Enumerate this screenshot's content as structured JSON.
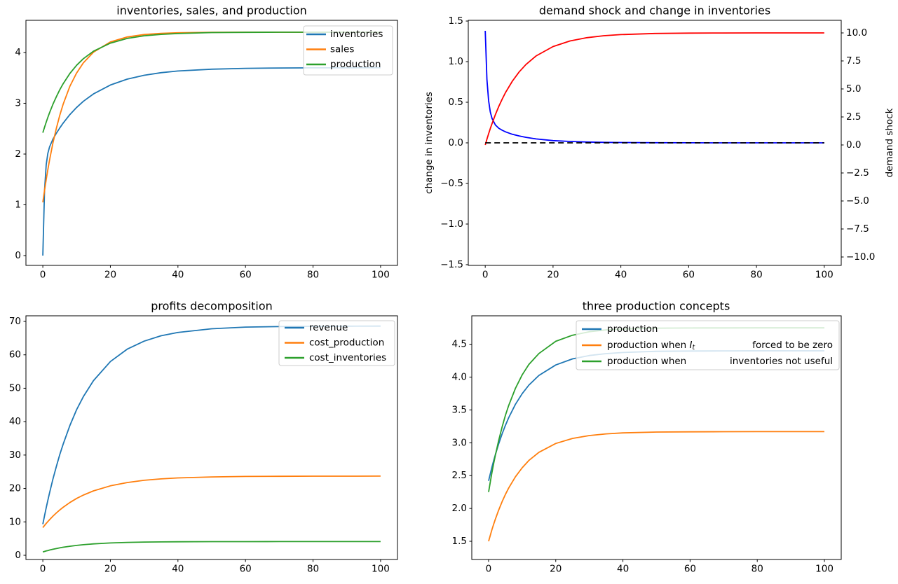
{
  "figure": {
    "background": "#ffffff",
    "colors": {
      "mpl_blue": "#1f77b4",
      "mpl_orange": "#ff7f0e",
      "mpl_green": "#2ca02c",
      "pure_blue": "#0000ff",
      "pure_red": "#ff0000",
      "black": "#000000"
    }
  },
  "chart_data": [
    {
      "id": "inventories-sales-production",
      "type": "line",
      "title": "inventories, sales, and production",
      "xlabel": "",
      "ylabel": "",
      "grid": false,
      "legend_position": "upper right",
      "xlim": [
        -5,
        105
      ],
      "ylim": [
        -0.193,
        4.634
      ],
      "xticks": [
        0,
        20,
        40,
        60,
        80,
        100
      ],
      "yticks": [
        0,
        1,
        2,
        3,
        4
      ],
      "xtick_decimals": 0,
      "ytick_decimals": 0,
      "x": [
        0,
        0.5,
        1,
        1.5,
        2,
        3,
        4,
        5,
        6,
        8,
        10,
        12,
        15,
        20,
        25,
        30,
        35,
        40,
        50,
        60,
        70,
        80,
        90,
        100
      ],
      "series": [
        {
          "name": "inventories",
          "color": "#1f77b4",
          "values": [
            0,
            1.274,
            1.787,
            2.017,
            2.141,
            2.293,
            2.41,
            2.513,
            2.608,
            2.776,
            2.918,
            3.038,
            3.184,
            3.36,
            3.476,
            3.552,
            3.603,
            3.636,
            3.672,
            3.688,
            3.695,
            3.698,
            3.699,
            3.7
          ]
        },
        {
          "name": "sales",
          "color": "#ff7f0e",
          "values": [
            1.05,
            1.281,
            1.496,
            1.696,
            1.883,
            2.218,
            2.508,
            2.76,
            2.978,
            3.332,
            3.597,
            3.797,
            4.007,
            4.208,
            4.306,
            4.354,
            4.377,
            4.389,
            4.397,
            4.399,
            4.4,
            4.4,
            4.4,
            4.4
          ]
        },
        {
          "name": "production",
          "color": "#2ca02c",
          "values": [
            2.42,
            2.527,
            2.628,
            2.724,
            2.815,
            2.981,
            3.13,
            3.264,
            3.383,
            3.586,
            3.748,
            3.878,
            4.026,
            4.185,
            4.277,
            4.329,
            4.357,
            4.374,
            4.392,
            4.397,
            4.399,
            4.4,
            4.4,
            4.4
          ]
        }
      ],
      "legend": {
        "items": [
          {
            "label": "inventories"
          },
          {
            "label": "sales"
          },
          {
            "label": "production"
          }
        ]
      }
    },
    {
      "id": "demand-shock-and-change-in-inventories",
      "type": "line",
      "title": "demand shock and change in inventories",
      "grid": false,
      "xlim": [
        -5,
        105
      ],
      "ylim": [
        -1.509,
        1.509
      ],
      "xticks": [
        0,
        20,
        40,
        60,
        80,
        100
      ],
      "yticks": [
        -1.5,
        -1.0,
        -0.5,
        0.0,
        0.5,
        1.0,
        1.5
      ],
      "xtick_decimals": 0,
      "ytick_decimals": 1,
      "ylabel_left": {
        "text": "change in inventories",
        "color": "#0000ff"
      },
      "right_axis": {
        "ylim": [
          -10.75,
          11.125
        ],
        "yticks": [
          -10.0,
          -7.5,
          -5.0,
          -2.5,
          0.0,
          2.5,
          5.0,
          7.5,
          10.0
        ],
        "decimals": 1,
        "label": {
          "text": "demand shock",
          "color": "#ff0000"
        }
      },
      "x": [
        0,
        0.5,
        1,
        1.5,
        2,
        3,
        4,
        5,
        6,
        8,
        10,
        12,
        15,
        20,
        25,
        30,
        35,
        40,
        50,
        60,
        70,
        80,
        90,
        100
      ],
      "series": [
        {
          "name": "change in inventories",
          "color": "#0000ff",
          "axis": "left",
          "values": [
            1.38,
            0.78,
            0.52,
            0.38,
            0.3,
            0.22,
            0.18,
            0.155,
            0.135,
            0.105,
            0.085,
            0.068,
            0.048,
            0.028,
            0.017,
            0.01,
            0.006,
            0.004,
            0.002,
            0.001,
            0,
            0,
            0,
            0
          ]
        },
        {
          "name": "demand shock",
          "color": "#ff0000",
          "axis": "right",
          "values": [
            0,
            0.513,
            1,
            1.462,
            1.9,
            2.71,
            3.439,
            4.095,
            4.686,
            5.695,
            6.513,
            7.176,
            7.941,
            8.784,
            9.282,
            9.576,
            9.75,
            9.852,
            9.948,
            9.982,
            9.994,
            9.998,
            9.999,
            10
          ]
        },
        {
          "name": "zero line",
          "color": "#000000",
          "axis": "left",
          "dash": "8 5",
          "values": [
            0,
            0,
            0,
            0,
            0,
            0,
            0,
            0,
            0,
            0,
            0,
            0,
            0,
            0,
            0,
            0,
            0,
            0,
            0,
            0,
            0,
            0,
            0,
            0
          ]
        }
      ],
      "legend": null
    },
    {
      "id": "profits-decomposition",
      "type": "line",
      "title": "profits decomposition",
      "grid": false,
      "legend_position": "upper right",
      "xlim": [
        -5,
        105
      ],
      "ylim": [
        -1.26,
        71.68
      ],
      "xticks": [
        0,
        20,
        40,
        60,
        80,
        100
      ],
      "yticks": [
        0,
        10,
        20,
        30,
        40,
        50,
        60,
        70
      ],
      "xtick_decimals": 0,
      "ytick_decimals": 0,
      "x": [
        0,
        0.5,
        1,
        1.5,
        2,
        3,
        4,
        5,
        6,
        8,
        10,
        12,
        15,
        20,
        25,
        30,
        35,
        40,
        50,
        60,
        70,
        80,
        90,
        100
      ],
      "series": [
        {
          "name": "revenue",
          "color": "#1f77b4",
          "values": [
            9.3,
            11.8,
            14.2,
            16.5,
            18.7,
            22.8,
            26.6,
            30.1,
            33.2,
            38.8,
            43.6,
            47.5,
            52.3,
            58,
            61.7,
            64.1,
            65.7,
            66.7,
            67.8,
            68.3,
            68.46,
            68.54,
            68.57,
            68.6
          ]
        },
        {
          "name": "cost_production",
          "color": "#ff7f0e",
          "values": [
            8.3,
            8.93,
            9.53,
            10.1,
            10.66,
            11.71,
            12.67,
            13.55,
            14.36,
            15.79,
            17.01,
            18.03,
            19.29,
            20.79,
            21.78,
            22.44,
            22.87,
            23.15,
            23.46,
            23.6,
            23.65,
            23.68,
            23.69,
            23.7
          ]
        },
        {
          "name": "cost_inventories",
          "color": "#2ca02c",
          "values": [
            1,
            1.15,
            1.295,
            1.43,
            1.56,
            1.8,
            2.02,
            2.22,
            2.4,
            2.71,
            2.96,
            3.17,
            3.41,
            3.68,
            3.85,
            3.95,
            4.01,
            4.04,
            4.08,
            4.09,
            4.1,
            4.1,
            4.1,
            4.1
          ]
        }
      ],
      "legend": {
        "items": [
          {
            "label": "revenue"
          },
          {
            "label": "cost_production"
          },
          {
            "label": "cost_inventories"
          }
        ]
      }
    },
    {
      "id": "three-production-concepts",
      "type": "line",
      "title": "three production concepts",
      "grid": false,
      "legend_position": "upper center",
      "xlim": [
        -5,
        105
      ],
      "ylim": [
        1.223,
        4.933
      ],
      "xticks": [
        0,
        20,
        40,
        60,
        80,
        100
      ],
      "yticks": [
        1.5,
        2.0,
        2.5,
        3.0,
        3.5,
        4.0,
        4.5
      ],
      "xtick_decimals": 0,
      "ytick_decimals": 1,
      "x": [
        0,
        0.5,
        1,
        1.5,
        2,
        3,
        4,
        5,
        6,
        8,
        10,
        12,
        15,
        20,
        25,
        30,
        35,
        40,
        50,
        60,
        70,
        80,
        90,
        100
      ],
      "series": [
        {
          "name": "production",
          "color": "#1f77b4",
          "values": [
            2.42,
            2.527,
            2.628,
            2.724,
            2.815,
            2.981,
            3.13,
            3.264,
            3.383,
            3.586,
            3.748,
            3.878,
            4.026,
            4.185,
            4.277,
            4.329,
            4.357,
            4.374,
            4.392,
            4.397,
            4.399,
            4.4,
            4.4,
            4.4
          ]
        },
        {
          "name": "production when It forced to be zero",
          "color": "#ff7f0e",
          "values": [
            1.5,
            1.59,
            1.676,
            1.756,
            1.833,
            1.973,
            2.099,
            2.212,
            2.313,
            2.483,
            2.62,
            2.73,
            2.855,
            2.989,
            3.066,
            3.11,
            3.136,
            3.151,
            3.163,
            3.167,
            3.169,
            3.17,
            3.17,
            3.17
          ]
        },
        {
          "name": "production when inventories not useful",
          "color": "#2ca02c",
          "values": [
            2.25,
            2.402,
            2.544,
            2.678,
            2.803,
            3.032,
            3.234,
            3.415,
            3.569,
            3.83,
            4.034,
            4.192,
            4.359,
            4.545,
            4.638,
            4.691,
            4.719,
            4.733,
            4.745,
            4.748,
            4.749,
            4.75,
            4.75,
            4.75
          ]
        }
      ],
      "legend": {
        "items": [
          {
            "label": "production"
          },
          {
            "pre": "production when ",
            "math": "I",
            "math_sub": "t",
            "post": "forced to be zero"
          },
          {
            "pre": "production when",
            "post": "inventories not useful"
          }
        ]
      }
    }
  ]
}
